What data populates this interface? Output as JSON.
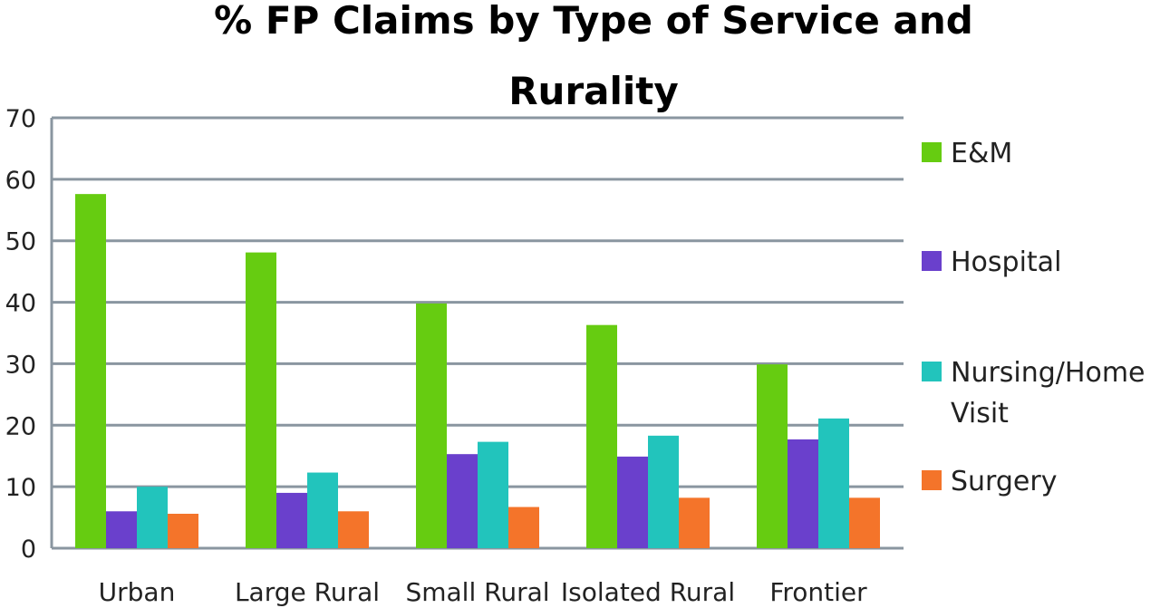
{
  "chart_data": {
    "type": "bar",
    "title_line1": "% FP Claims by Type of Service and",
    "title_line2": "Rurality",
    "categories": [
      "Urban",
      "Large Rural",
      "Small Rural",
      "Isolated Rural",
      "Frontier"
    ],
    "series": [
      {
        "name": "E&M",
        "color": "#66cc11",
        "values": [
          57.6,
          48.1,
          39.8,
          36.3,
          29.9
        ]
      },
      {
        "name": "Hospital",
        "color": "#6a40cc",
        "values": [
          6.0,
          9.0,
          15.3,
          14.9,
          17.7
        ]
      },
      {
        "name": "Nursing/Home Visit",
        "color": "#22c4bc",
        "values": [
          10.0,
          12.3,
          17.3,
          18.3,
          21.1
        ]
      },
      {
        "name": "Surgery",
        "color": "#f4742a",
        "values": [
          5.6,
          6.0,
          6.7,
          8.2,
          8.2
        ]
      }
    ],
    "legend_lines": [
      [
        "E&M"
      ],
      [
        "Hospital"
      ],
      [
        "Nursing/Home",
        "Visit"
      ],
      [
        "Surgery"
      ]
    ],
    "ylim": [
      0,
      70
    ],
    "yticks": [
      0,
      10,
      20,
      30,
      40,
      50,
      60,
      70
    ],
    "grid": true,
    "legend_position": "right"
  }
}
